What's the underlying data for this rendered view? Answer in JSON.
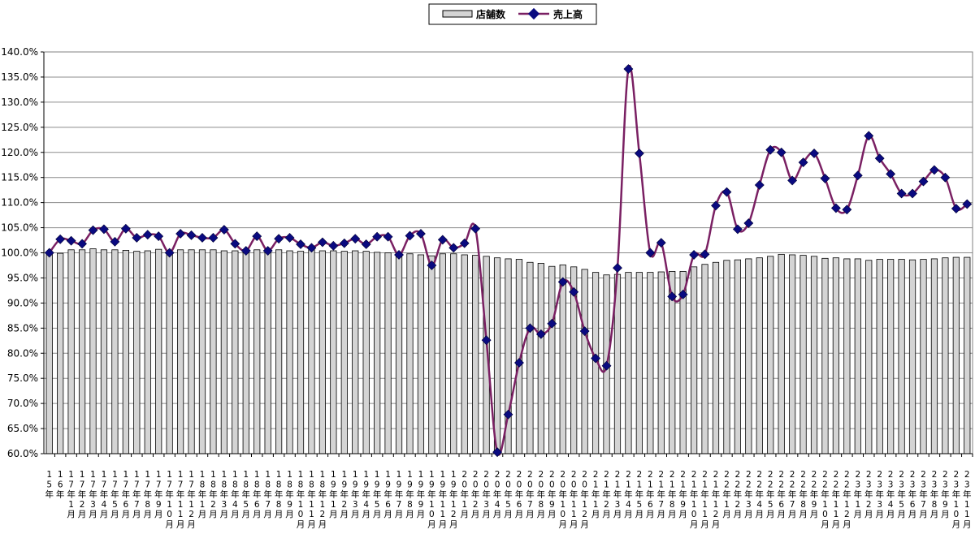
{
  "chart_data": {
    "type": "bar+line",
    "legend_position": "top-center",
    "grid": true,
    "ylim": [
      60,
      140
    ],
    "yticks": [
      "60.0%",
      "65.0%",
      "70.0%",
      "75.0%",
      "80.0%",
      "85.0%",
      "90.0%",
      "95.0%",
      "100.0%",
      "105.0%",
      "110.0%",
      "115.0%",
      "120.0%",
      "125.0%",
      "130.0%",
      "135.0%",
      "140.0%"
    ],
    "categories": [
      {
        "year": "15",
        "month": ""
      },
      {
        "year": "16",
        "month": ""
      },
      {
        "year": "17",
        "month": "1"
      },
      {
        "year": "17",
        "month": "2"
      },
      {
        "year": "17",
        "month": "3"
      },
      {
        "year": "17",
        "month": "4"
      },
      {
        "year": "17",
        "month": "5"
      },
      {
        "year": "17",
        "month": "6"
      },
      {
        "year": "17",
        "month": "7"
      },
      {
        "year": "17",
        "month": "8"
      },
      {
        "year": "17",
        "month": "9"
      },
      {
        "year": "17",
        "month": "10"
      },
      {
        "year": "17",
        "month": "11"
      },
      {
        "year": "17",
        "month": "12"
      },
      {
        "year": "18",
        "month": "1"
      },
      {
        "year": "18",
        "month": "2"
      },
      {
        "year": "18",
        "month": "3"
      },
      {
        "year": "18",
        "month": "4"
      },
      {
        "year": "18",
        "month": "5"
      },
      {
        "year": "18",
        "month": "6"
      },
      {
        "year": "18",
        "month": "7"
      },
      {
        "year": "18",
        "month": "8"
      },
      {
        "year": "18",
        "month": "9"
      },
      {
        "year": "18",
        "month": "10"
      },
      {
        "year": "18",
        "month": "11"
      },
      {
        "year": "18",
        "month": "12"
      },
      {
        "year": "19",
        "month": "1"
      },
      {
        "year": "19",
        "month": "2"
      },
      {
        "year": "19",
        "month": "3"
      },
      {
        "year": "19",
        "month": "4"
      },
      {
        "year": "19",
        "month": "5"
      },
      {
        "year": "19",
        "month": "6"
      },
      {
        "year": "19",
        "month": "7"
      },
      {
        "year": "19",
        "month": "8"
      },
      {
        "year": "19",
        "month": "9"
      },
      {
        "year": "19",
        "month": "10"
      },
      {
        "year": "19",
        "month": "11"
      },
      {
        "year": "19",
        "month": "12"
      },
      {
        "year": "20",
        "month": "1"
      },
      {
        "year": "20",
        "month": "2"
      },
      {
        "year": "20",
        "month": "3"
      },
      {
        "year": "20",
        "month": "4"
      },
      {
        "year": "20",
        "month": "5"
      },
      {
        "year": "20",
        "month": "6"
      },
      {
        "year": "20",
        "month": "7"
      },
      {
        "year": "20",
        "month": "8"
      },
      {
        "year": "20",
        "month": "9"
      },
      {
        "year": "20",
        "month": "10"
      },
      {
        "year": "20",
        "month": "11"
      },
      {
        "year": "20",
        "month": "12"
      },
      {
        "year": "21",
        "month": "1"
      },
      {
        "year": "21",
        "month": "2"
      },
      {
        "year": "21",
        "month": "3"
      },
      {
        "year": "21",
        "month": "4"
      },
      {
        "year": "21",
        "month": "5"
      },
      {
        "year": "21",
        "month": "6"
      },
      {
        "year": "21",
        "month": "7"
      },
      {
        "year": "21",
        "month": "8"
      },
      {
        "year": "21",
        "month": "9"
      },
      {
        "year": "21",
        "month": "10"
      },
      {
        "year": "21",
        "month": "11"
      },
      {
        "year": "21",
        "month": "12"
      },
      {
        "year": "22",
        "month": "1"
      },
      {
        "year": "22",
        "month": "2"
      },
      {
        "year": "22",
        "month": "3"
      },
      {
        "year": "22",
        "month": "4"
      },
      {
        "year": "22",
        "month": "5"
      },
      {
        "year": "22",
        "month": "6"
      },
      {
        "year": "22",
        "month": "7"
      },
      {
        "year": "22",
        "month": "8"
      },
      {
        "year": "22",
        "month": "9"
      },
      {
        "year": "22",
        "month": "10"
      },
      {
        "year": "22",
        "month": "11"
      },
      {
        "year": "22",
        "month": "12"
      },
      {
        "year": "23",
        "month": "1"
      },
      {
        "year": "23",
        "month": "2"
      },
      {
        "year": "23",
        "month": "3"
      },
      {
        "year": "23",
        "month": "4"
      },
      {
        "year": "23",
        "month": "5"
      },
      {
        "year": "23",
        "month": "6"
      },
      {
        "year": "23",
        "month": "7"
      },
      {
        "year": "23",
        "month": "8"
      },
      {
        "year": "23",
        "month": "9"
      },
      {
        "year": "23",
        "month": "10"
      },
      {
        "year": "23",
        "month": "11"
      }
    ],
    "year_suffix": "年",
    "month_suffix": "月",
    "series": [
      {
        "name": "店舗数",
        "kind": "bar",
        "color": "#d4d4d4",
        "values": [
          100.0,
          99.9,
          100.6,
          100.6,
          100.8,
          100.6,
          100.6,
          100.5,
          100.3,
          100.4,
          100.7,
          100.0,
          100.6,
          100.6,
          100.6,
          100.6,
          100.4,
          100.4,
          100.4,
          100.6,
          100.3,
          100.6,
          100.4,
          100.3,
          100.6,
          100.4,
          100.4,
          100.3,
          100.4,
          100.3,
          100.1,
          100.0,
          99.8,
          99.8,
          99.6,
          99.4,
          99.8,
          99.8,
          99.6,
          99.5,
          99.3,
          99.0,
          98.8,
          98.7,
          98.1,
          97.9,
          97.3,
          97.6,
          97.2,
          96.7,
          96.1,
          95.6,
          95.7,
          96.1,
          96.1,
          96.1,
          96.2,
          96.3,
          96.3,
          97.2,
          97.7,
          98.1,
          98.5,
          98.6,
          98.8,
          99.0,
          99.3,
          99.7,
          99.6,
          99.5,
          99.3,
          98.9,
          99.0,
          98.8,
          98.8,
          98.5,
          98.7,
          98.7,
          98.7,
          98.6,
          98.7,
          98.8,
          99.0,
          99.1,
          99.1
        ]
      },
      {
        "name": "売上高",
        "kind": "line",
        "color": "#7a2063",
        "marker_color": "#0a0a80",
        "values": [
          100.0,
          102.7,
          102.4,
          101.8,
          104.5,
          104.7,
          102.2,
          104.8,
          103.0,
          103.6,
          103.3,
          100.0,
          103.8,
          103.5,
          103.0,
          103.0,
          104.6,
          101.8,
          100.4,
          103.3,
          100.4,
          102.8,
          103.0,
          101.7,
          101.0,
          102.1,
          101.4,
          101.9,
          102.8,
          101.7,
          103.2,
          103.2,
          99.6,
          103.4,
          103.8,
          97.5,
          102.6,
          101.0,
          101.9,
          104.8,
          82.6,
          60.3,
          67.8,
          78.1,
          85.0,
          83.8,
          85.9,
          94.2,
          92.2,
          84.4,
          79.0,
          77.5,
          97.0,
          136.6,
          119.8,
          100.0,
          102.0,
          91.3,
          91.7,
          99.6,
          99.7,
          109.4,
          112.1,
          104.7,
          105.9,
          113.5,
          120.5,
          120.0,
          114.4,
          118.0,
          119.8,
          114.8,
          108.9,
          108.6,
          115.4,
          123.3,
          118.8,
          115.7,
          111.8,
          111.8,
          114.2,
          116.5,
          115.0,
          108.8,
          109.7
        ]
      }
    ]
  }
}
